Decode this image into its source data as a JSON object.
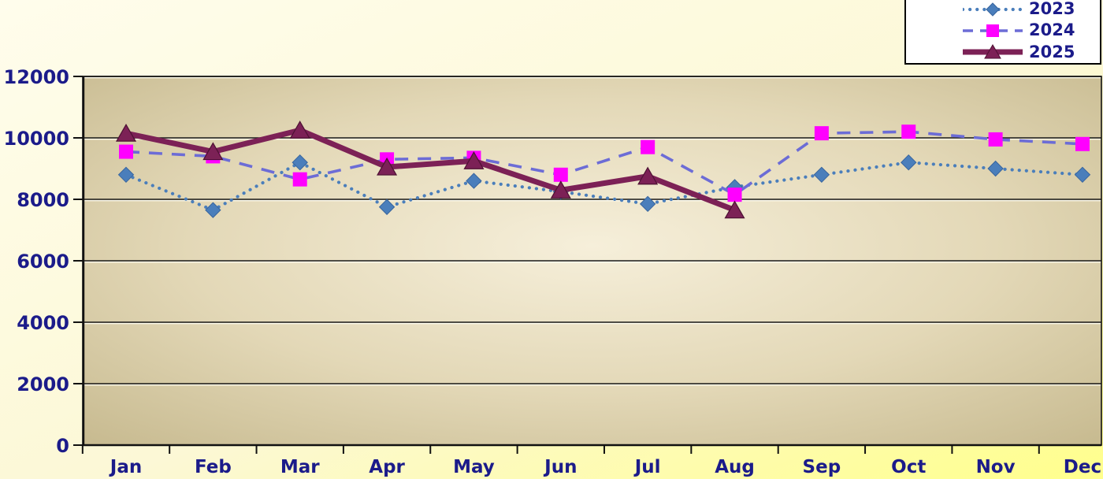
{
  "chart_data": {
    "type": "line",
    "title": "",
    "categories": [
      "Jan",
      "Feb",
      "Mar",
      "Apr",
      "May",
      "Jun",
      "Jul",
      "Aug",
      "Sep",
      "Oct",
      "Nov",
      "Dec"
    ],
    "series": [
      {
        "name": "2023",
        "line_style": "dotted",
        "marker": "diamond",
        "color": "#4a7ebb",
        "marker_color": "#4a7ebb",
        "values": [
          8800,
          7650,
          9200,
          7750,
          8600,
          8250,
          7850,
          8400,
          8800,
          9200,
          9000,
          8800
        ]
      },
      {
        "name": "2024",
        "line_style": "dashed",
        "marker": "square",
        "color": "#6c6cd6",
        "marker_color": "#ff00ff",
        "values": [
          9550,
          9400,
          8650,
          9300,
          9350,
          8800,
          9700,
          8150,
          10150,
          10200,
          9950,
          9800
        ]
      },
      {
        "name": "2025",
        "line_style": "solid",
        "marker": "triangle",
        "color": "#7c2156",
        "marker_color": "#7c2156",
        "values": [
          10150,
          9550,
          10250,
          9050,
          9250,
          8300,
          8750,
          7650,
          null,
          null,
          null,
          null
        ]
      }
    ],
    "xlabel": "",
    "ylabel": "",
    "ylim": [
      0,
      12000
    ],
    "y_ticks": [
      "0",
      "2000",
      "4000",
      "6000",
      "8000",
      "10000",
      "12000"
    ],
    "grid": "horizontal",
    "legend_position": "top-right",
    "text_color": "#1b1b8a"
  }
}
